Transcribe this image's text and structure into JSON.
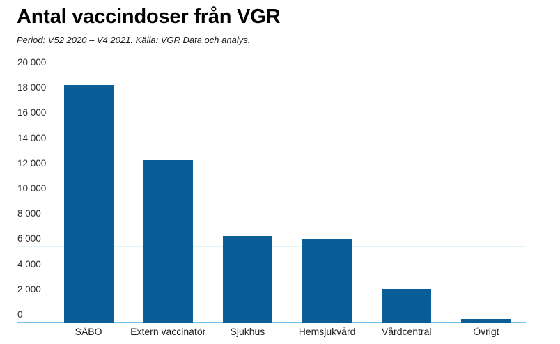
{
  "header": {
    "title": "Antal vaccindoser från VGR",
    "subtitle": "Period: V52 2020 – V4 2021. Källa: VGR Data och analys."
  },
  "colors": {
    "bar": "#0a5e97",
    "axis_line": "#7cc2ee",
    "gridline": "#e6f3fb",
    "title_text": "#000000",
    "tick_text": "#2e2e2e",
    "category_text": "#1f1f1f"
  },
  "chart_data": {
    "type": "bar",
    "title": "Antal vaccindoser från VGR",
    "subtitle": "Period: V52 2020 – V4 2021. Källa: VGR Data och analys.",
    "categories": [
      "SÄBO",
      "Extern vaccinatör",
      "Sjukhus",
      "Hemsjukvård",
      "Vårdcentral",
      "Övrigt"
    ],
    "values": [
      18800,
      12800,
      6800,
      6600,
      2600,
      200
    ],
    "xlabel": "",
    "ylabel": "",
    "ylim": [
      0,
      20000
    ],
    "y_tick_step": 2000,
    "y_tick_labels": [
      "0",
      "2 000",
      "4 000",
      "6 000",
      "8 000",
      "10 000",
      "12 000",
      "14 000",
      "16 000",
      "18 000",
      "20 000"
    ],
    "grid": true,
    "legend": "none",
    "bar_color": "#0a5e97"
  }
}
